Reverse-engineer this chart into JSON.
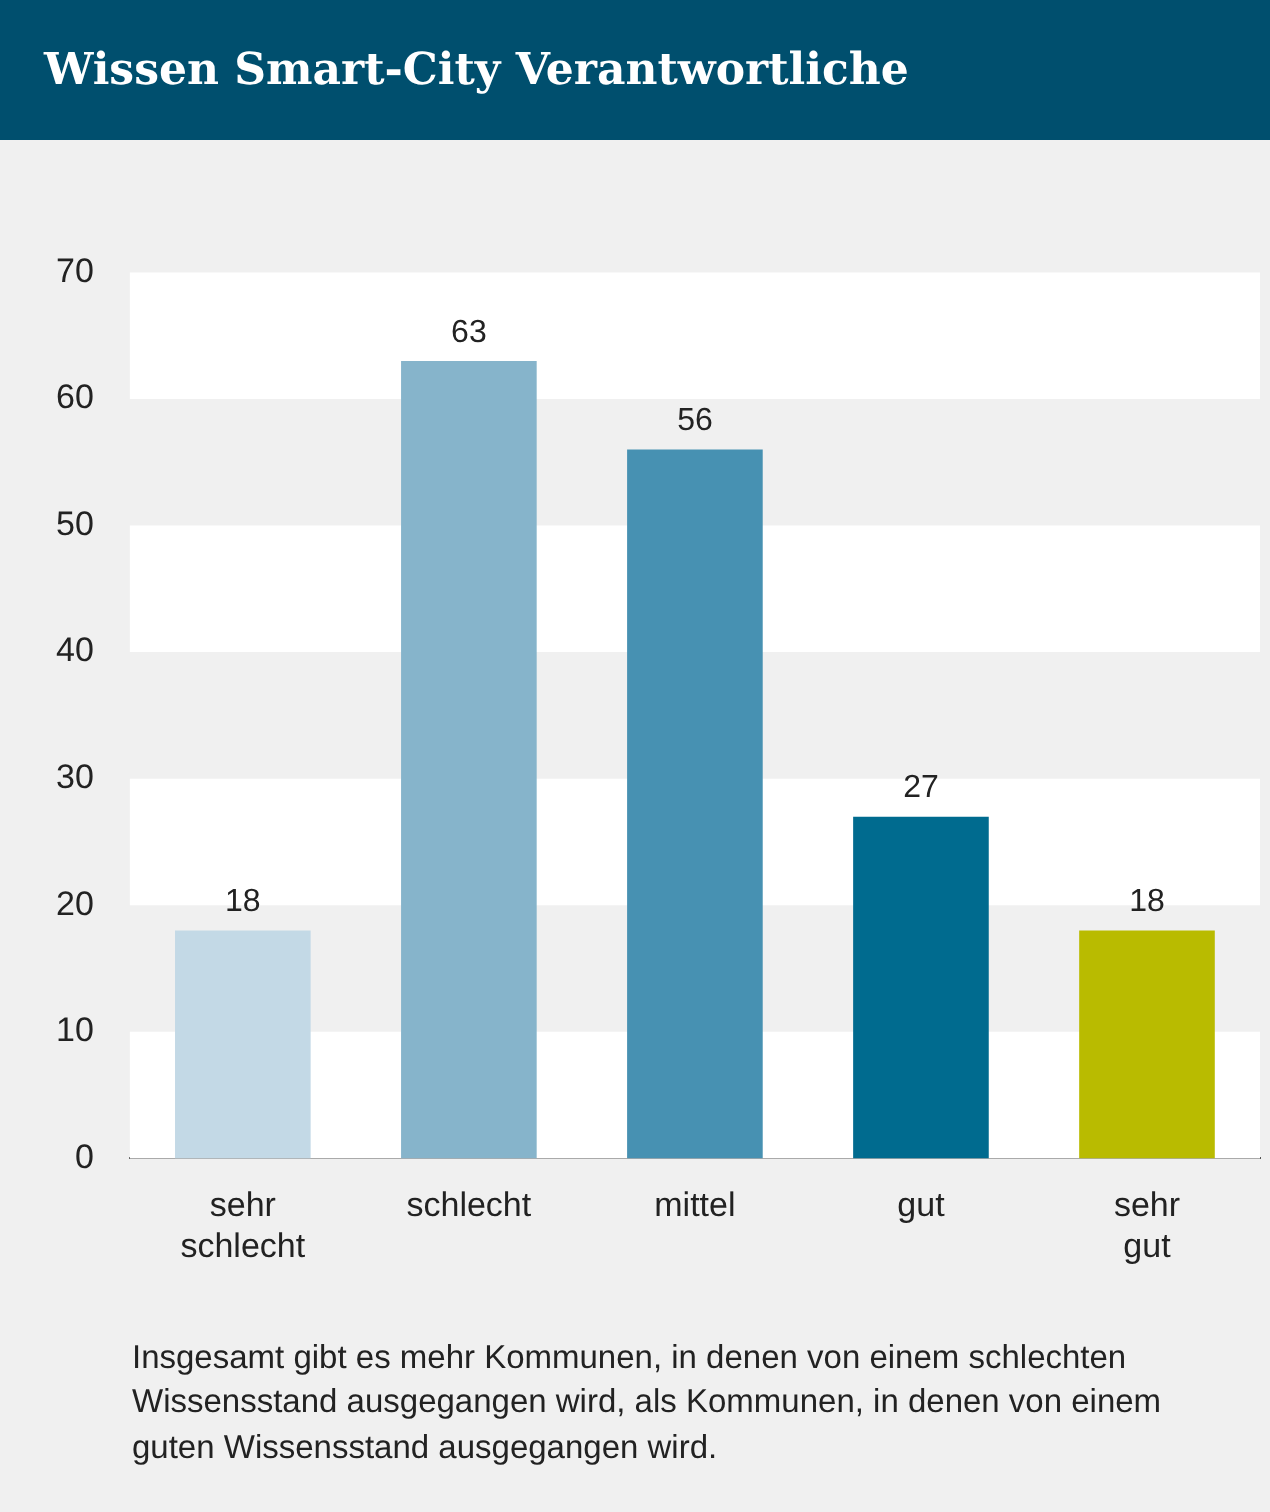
{
  "chart_data": {
    "type": "bar",
    "title": "Wissen Smart-City Verantwortliche",
    "categories": [
      "sehr schlecht",
      "schlecht",
      "mittel",
      "gut",
      "sehr gut"
    ],
    "values": [
      18,
      63,
      56,
      27,
      18
    ],
    "colors": [
      "#c3d9e6",
      "#86b4cb",
      "#4791b2",
      "#006b8f",
      "#b9bb00"
    ],
    "ylim": [
      0,
      70
    ],
    "yticks": [
      0,
      10,
      20,
      30,
      40,
      50,
      60,
      70
    ],
    "bands": [
      {
        "axis": "y",
        "from": 60,
        "to": 70,
        "color": "#ffffff"
      },
      {
        "axis": "y",
        "from": 40,
        "to": 50,
        "color": "#ffffff"
      },
      {
        "axis": "y",
        "from": 20,
        "to": 30,
        "color": "#ffffff"
      },
      {
        "axis": "y",
        "from": 0,
        "to": 10,
        "color": "#ffffff"
      }
    ],
    "data_labels": true,
    "legend": false,
    "annotations": [
      "Insgesamt gibt es mehr Kommunen, in denen von einem schlechten Wissensstand ausgegangen wird, als Kommunen, in denen von einem guten Wissensstand ausgegangen wird."
    ]
  }
}
